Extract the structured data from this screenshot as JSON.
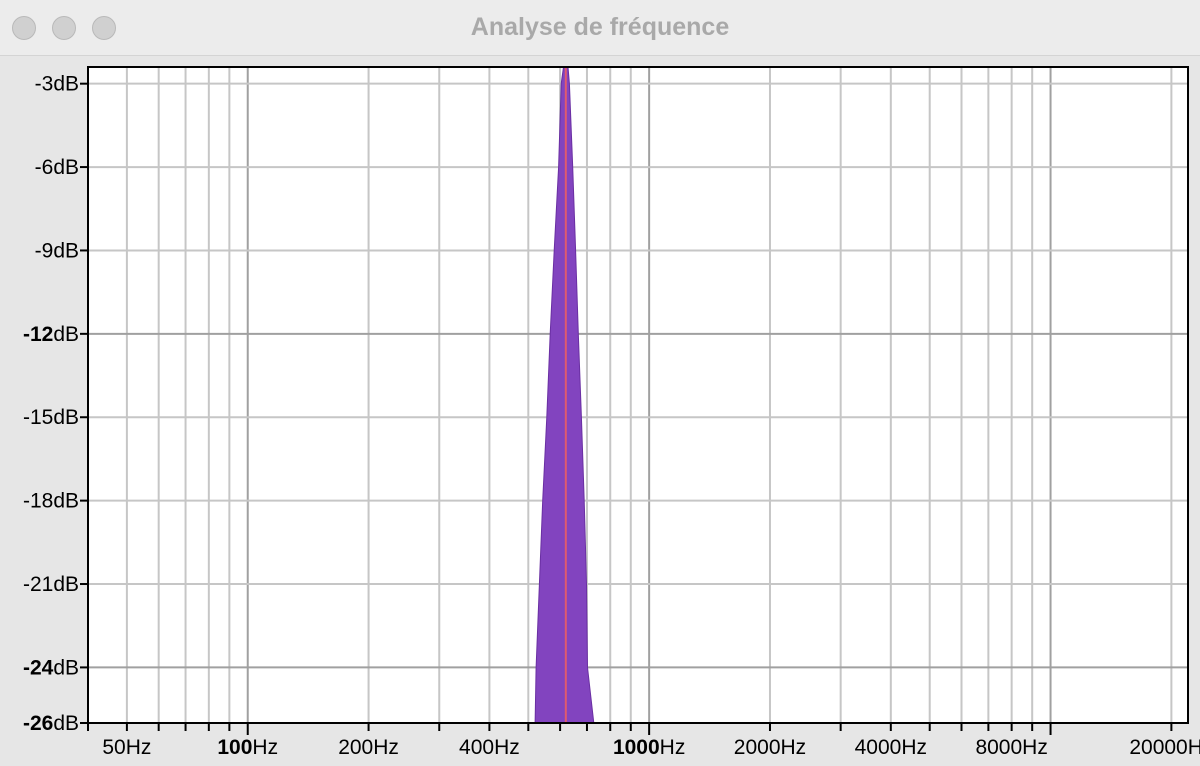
{
  "window": {
    "title": "Analyse de fréquence",
    "buttons": [
      "close",
      "minimize",
      "zoom"
    ]
  },
  "colors": {
    "spectrum_fill": "#8244bf",
    "spectrum_edge": "#6a2fa3",
    "peak_marker": "#e05a6e",
    "grid_major": "#a0a0a0",
    "grid_minor": "#c6c6c6",
    "plot_background": "#ffffff",
    "chrome": "#e6e6e6"
  },
  "chart_data": {
    "type": "area",
    "x_scale": "log",
    "xlim": [
      40,
      22000
    ],
    "ylim": [
      -26,
      -2.4
    ],
    "grid": true,
    "x_ticks": [
      {
        "value": 50,
        "num": "50",
        "unit": "Hz",
        "bold": false
      },
      {
        "value": 100,
        "num": "100",
        "unit": "Hz",
        "bold": true
      },
      {
        "value": 200,
        "num": "200",
        "unit": "Hz",
        "bold": false
      },
      {
        "value": 400,
        "num": "400",
        "unit": "Hz",
        "bold": false
      },
      {
        "value": 1000,
        "num": "1000",
        "unit": "Hz",
        "bold": true
      },
      {
        "value": 2000,
        "num": "2000",
        "unit": "Hz",
        "bold": false
      },
      {
        "value": 4000,
        "num": "4000",
        "unit": "Hz",
        "bold": false
      },
      {
        "value": 8000,
        "num": "8000",
        "unit": "Hz",
        "bold": false
      },
      {
        "value": 20000,
        "num": "20000",
        "unit": "Hz",
        "bold": false
      }
    ],
    "y_ticks": [
      {
        "value": -3,
        "num": "-3",
        "unit": "dB",
        "bold": false
      },
      {
        "value": -6,
        "num": "-6",
        "unit": "dB",
        "bold": false
      },
      {
        "value": -9,
        "num": "-9",
        "unit": "dB",
        "bold": false
      },
      {
        "value": -12,
        "num": "-12",
        "unit": "dB",
        "bold": true
      },
      {
        "value": -15,
        "num": "-15",
        "unit": "dB",
        "bold": false
      },
      {
        "value": -18,
        "num": "-18",
        "unit": "dB",
        "bold": false
      },
      {
        "value": -21,
        "num": "-21",
        "unit": "dB",
        "bold": false
      },
      {
        "value": -24,
        "num": "-24",
        "unit": "dB",
        "bold": true
      },
      {
        "value": -26,
        "num": "-26",
        "unit": "dB",
        "bold": true
      }
    ],
    "peak_frequency": 620,
    "spectrum": [
      {
        "x": 520,
        "y": -26
      },
      {
        "x": 523,
        "y": -24
      },
      {
        "x": 533,
        "y": -21
      },
      {
        "x": 543,
        "y": -18
      },
      {
        "x": 556,
        "y": -15
      },
      {
        "x": 567,
        "y": -12
      },
      {
        "x": 580,
        "y": -9
      },
      {
        "x": 595,
        "y": -6
      },
      {
        "x": 604,
        "y": -3
      },
      {
        "x": 612,
        "y": -2.4
      },
      {
        "x": 628,
        "y": -2.4
      },
      {
        "x": 633,
        "y": -3
      },
      {
        "x": 645,
        "y": -6
      },
      {
        "x": 656,
        "y": -9
      },
      {
        "x": 666,
        "y": -12
      },
      {
        "x": 678,
        "y": -15
      },
      {
        "x": 689,
        "y": -18
      },
      {
        "x": 698,
        "y": -21
      },
      {
        "x": 702,
        "y": -24
      },
      {
        "x": 728,
        "y": -26
      }
    ]
  }
}
